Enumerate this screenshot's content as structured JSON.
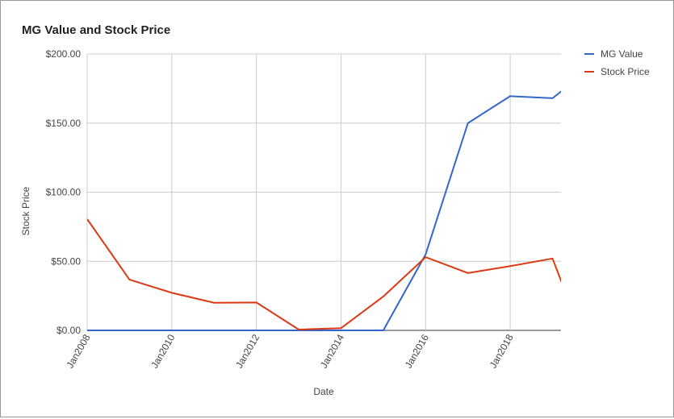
{
  "chart_data": {
    "type": "line",
    "title": "MG Value and Stock Price",
    "x_label": "Date",
    "y_label": "Stock Price",
    "x": [
      2008,
      2009,
      2010,
      2011,
      2012,
      2013,
      2014,
      2015,
      2016,
      2017,
      2018,
      2019,
      2019.25
    ],
    "series": [
      {
        "name": "MG Value",
        "color": "#3366cc",
        "values": [
          0,
          0,
          0,
          0,
          0,
          0,
          0,
          0,
          55,
          150,
          169.5,
          168,
          174
        ]
      },
      {
        "name": "Stock Price",
        "color": "#dc3912",
        "values": [
          80.5,
          36.7,
          27.2,
          20,
          20.2,
          0.6,
          1.6,
          24.5,
          53,
          41.5,
          46.5,
          52,
          32
        ]
      }
    ],
    "xlim": [
      2008,
      2019.2
    ],
    "xticks": [
      {
        "value": 2008,
        "label": "Jan2008"
      },
      {
        "value": 2010,
        "label": "Jan2010"
      },
      {
        "value": 2012,
        "label": "Jan2012"
      },
      {
        "value": 2014,
        "label": "Jan2014"
      },
      {
        "value": 2016,
        "label": "Jan2016"
      },
      {
        "value": 2018,
        "label": "Jan2018"
      }
    ],
    "ylim": [
      0,
      200
    ],
    "yticks": [
      {
        "value": 0,
        "label": "$0.00"
      },
      {
        "value": 50,
        "label": "$50.00"
      },
      {
        "value": 100,
        "label": "$100.00"
      },
      {
        "value": 150,
        "label": "$150.00"
      },
      {
        "value": 200,
        "label": "$200.00"
      }
    ],
    "grid": true,
    "legend": "right"
  }
}
